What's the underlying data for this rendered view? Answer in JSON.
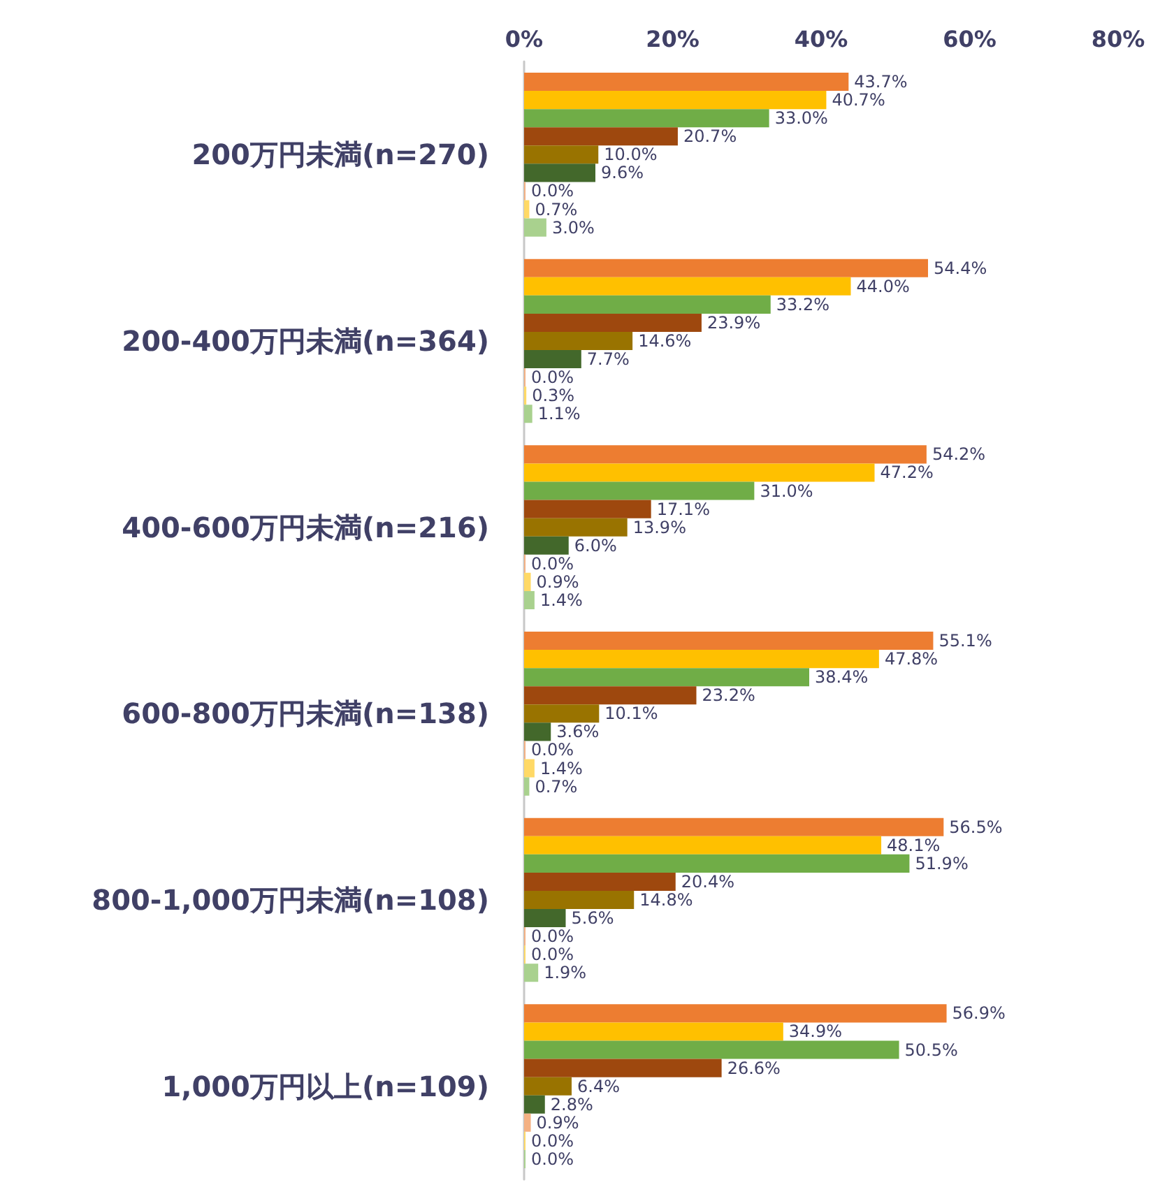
{
  "chart_data": {
    "type": "bar",
    "orientation": "horizontal",
    "categories": [
      "200万円未満(n=270)",
      "200-400万円未満(n=364)",
      "400-600万円未満(n=216)",
      "600-800万円未満(n=138)",
      "800-1,000万円未満(n=108)",
      "1,000万円以上(n=109)"
    ],
    "series": [
      {
        "color": "#ed7d31",
        "values": [
          43.7,
          54.4,
          54.2,
          55.1,
          56.5,
          56.9
        ],
        "value_labels": [
          "43.7%",
          "54.4%",
          "54.2%",
          "55.1%",
          "56.5%",
          "56.9%"
        ]
      },
      {
        "color": "#ffc000",
        "values": [
          40.7,
          44.0,
          47.2,
          47.8,
          48.1,
          34.9
        ],
        "value_labels": [
          "40.7%",
          "44.0%",
          "47.2%",
          "47.8%",
          "48.1%",
          "34.9%"
        ]
      },
      {
        "color": "#70ad47",
        "values": [
          33.0,
          33.2,
          31.0,
          38.4,
          51.9,
          50.5
        ],
        "value_labels": [
          "33.0%",
          "33.2%",
          "31.0%",
          "38.4%",
          "51.9%",
          "50.5%"
        ]
      },
      {
        "color": "#9e480e",
        "values": [
          20.7,
          23.9,
          17.1,
          23.2,
          20.4,
          26.6
        ],
        "value_labels": [
          "20.7%",
          "23.9%",
          "17.1%",
          "23.2%",
          "20.4%",
          "26.6%"
        ]
      },
      {
        "color": "#997300",
        "values": [
          10.0,
          14.6,
          13.9,
          10.1,
          14.8,
          6.4
        ],
        "value_labels": [
          "10.0%",
          "14.6%",
          "13.9%",
          "10.1%",
          "14.8%",
          "6.4%"
        ]
      },
      {
        "color": "#43682b",
        "values": [
          9.6,
          7.7,
          6.0,
          3.6,
          5.6,
          2.8
        ],
        "value_labels": [
          "9.6%",
          "7.7%",
          "6.0%",
          "3.6%",
          "5.6%",
          "2.8%"
        ]
      },
      {
        "color": "#f4b183",
        "values": [
          0.0,
          0.0,
          0.0,
          0.0,
          0.0,
          0.9
        ],
        "value_labels": [
          "0.0%",
          "0.0%",
          "0.0%",
          "0.0%",
          "0.0%",
          "0.9%"
        ]
      },
      {
        "color": "#ffd966",
        "values": [
          0.7,
          0.3,
          0.9,
          1.4,
          0.0,
          0.0
        ],
        "value_labels": [
          "0.7%",
          "0.3%",
          "0.9%",
          "1.4%",
          "0.0%",
          "0.0%"
        ]
      },
      {
        "color": "#a9d18e",
        "values": [
          3.0,
          1.1,
          1.4,
          0.7,
          1.9,
          0.0
        ],
        "value_labels": [
          "3.0%",
          "1.1%",
          "1.4%",
          "0.7%",
          "1.9%",
          "0.0%"
        ]
      }
    ],
    "xlim": [
      0,
      80
    ],
    "xticks": [
      {
        "value": 0,
        "label": "0%"
      },
      {
        "value": 20,
        "label": "20%"
      },
      {
        "value": 40,
        "label": "40%"
      },
      {
        "value": 60,
        "label": "60%"
      },
      {
        "value": 80,
        "label": "80%"
      }
    ],
    "grid": false
  }
}
